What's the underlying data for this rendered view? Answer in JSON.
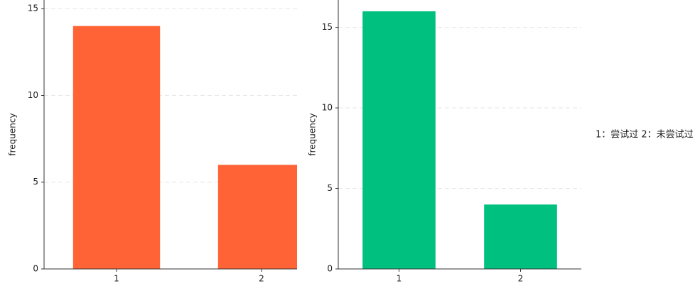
{
  "chart_data": [
    {
      "type": "bar",
      "y_label": "frequency",
      "categories": [
        "1",
        "2"
      ],
      "values": [
        14,
        6
      ],
      "color": "#ff6336",
      "ylim": [
        0,
        15.5
      ],
      "yticks": [
        0,
        5,
        10,
        15
      ],
      "grid": true
    },
    {
      "type": "bar",
      "y_label": "frequency",
      "categories": [
        "1",
        "2"
      ],
      "values": [
        16,
        4
      ],
      "color": "#00c07f",
      "ylim": [
        0,
        16.7
      ],
      "yticks": [
        0,
        5,
        10,
        15
      ],
      "grid": true,
      "annotation": "1：尝试过 2：未尝试过"
    }
  ]
}
